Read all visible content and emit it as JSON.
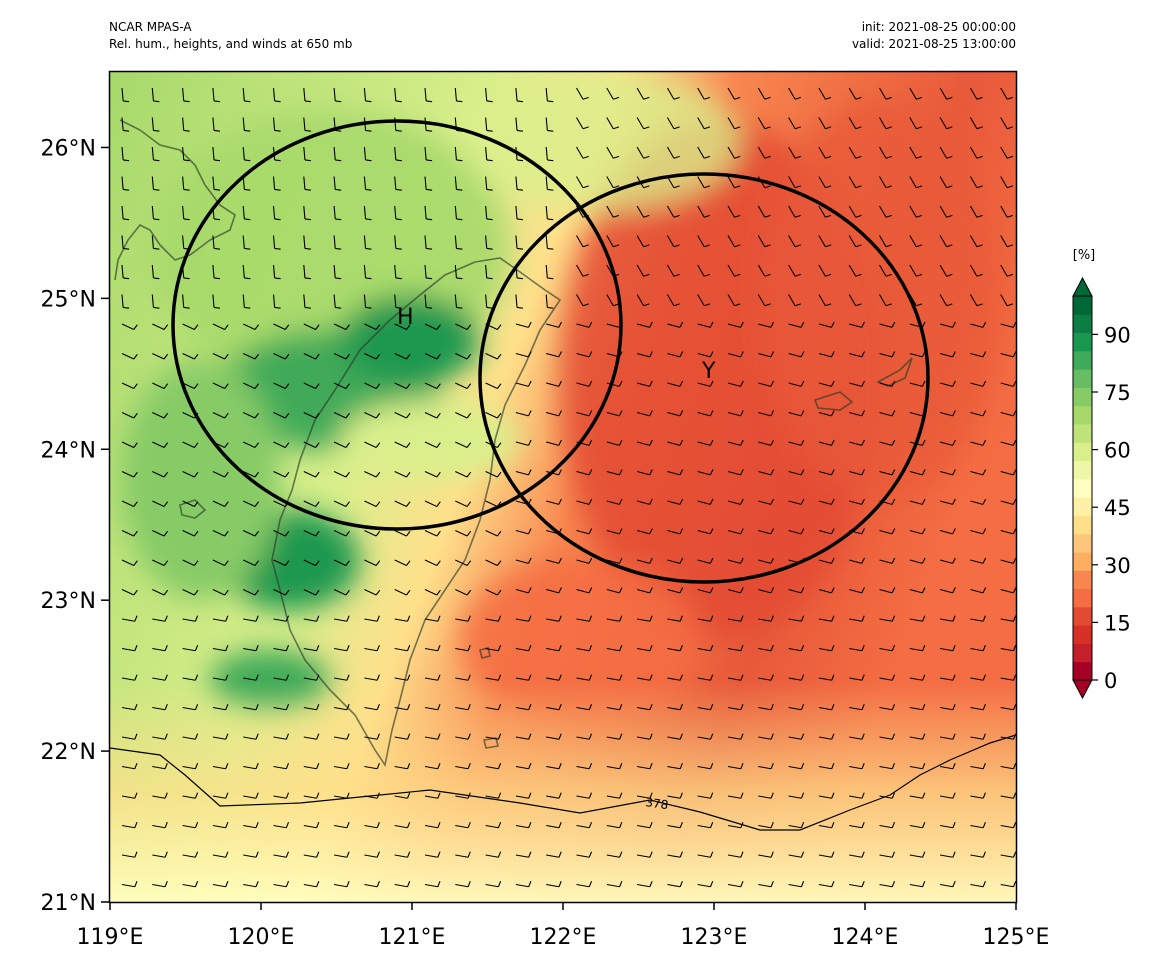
{
  "header": {
    "model": "NCAR MPAS-A",
    "field_description": "Rel. hum., heights, and winds at 650 mb",
    "init": "init: 2021-08-25 00:00:00",
    "valid": "valid: 2021-08-25 13:00:00"
  },
  "map": {
    "lon_range": [
      119,
      125
    ],
    "lat_range": [
      21,
      26.5
    ],
    "lon_ticks": [
      119,
      120,
      121,
      122,
      123,
      124,
      125
    ],
    "lat_ticks": [
      21,
      22,
      23,
      24,
      25,
      26
    ],
    "lon_tick_labels": [
      "119°E",
      "120°E",
      "121°E",
      "122°E",
      "123°E",
      "124°E",
      "125°E"
    ],
    "lat_tick_labels": [
      "21°N",
      "22°N",
      "23°N",
      "24°N",
      "25°N",
      "26°N"
    ],
    "contour_label": "378",
    "wind_barbs": "light westerly to south-westerly barbs across domain",
    "regions": [
      {
        "name": "moist-northwest",
        "description": "green high humidity over Taiwan and west"
      },
      {
        "name": "dry-southeast",
        "description": "red/orange low humidity band to the east"
      }
    ]
  },
  "markers": [
    {
      "label": "H",
      "lon": 121.0,
      "lat": 24.9
    },
    {
      "label": "Y",
      "lon": 122.95,
      "lat": 24.45
    }
  ],
  "circles": [
    {
      "center_lon": 120.9,
      "center_lat": 24.85,
      "label": "H"
    },
    {
      "center_lon": 122.9,
      "center_lat": 24.45,
      "label": "Y"
    }
  ],
  "colorbar": {
    "unit_label": "[%]",
    "tick_labels": [
      "0",
      "15",
      "30",
      "45",
      "60",
      "75",
      "90"
    ],
    "ticks": [
      0,
      15,
      30,
      45,
      60,
      75,
      90
    ],
    "range": [
      0,
      100
    ],
    "colors": [
      "#a50026",
      "#c4202b",
      "#d73027",
      "#e34a33",
      "#f46d43",
      "#f8864f",
      "#fdae61",
      "#fec57c",
      "#fee08b",
      "#fef0a6",
      "#ffffbf",
      "#eef6a8",
      "#d9ef8b",
      "#bfe37a",
      "#a6d96a",
      "#86cb66",
      "#66bd63",
      "#3faa59",
      "#1a9850",
      "#0c7d43",
      "#006837"
    ]
  }
}
